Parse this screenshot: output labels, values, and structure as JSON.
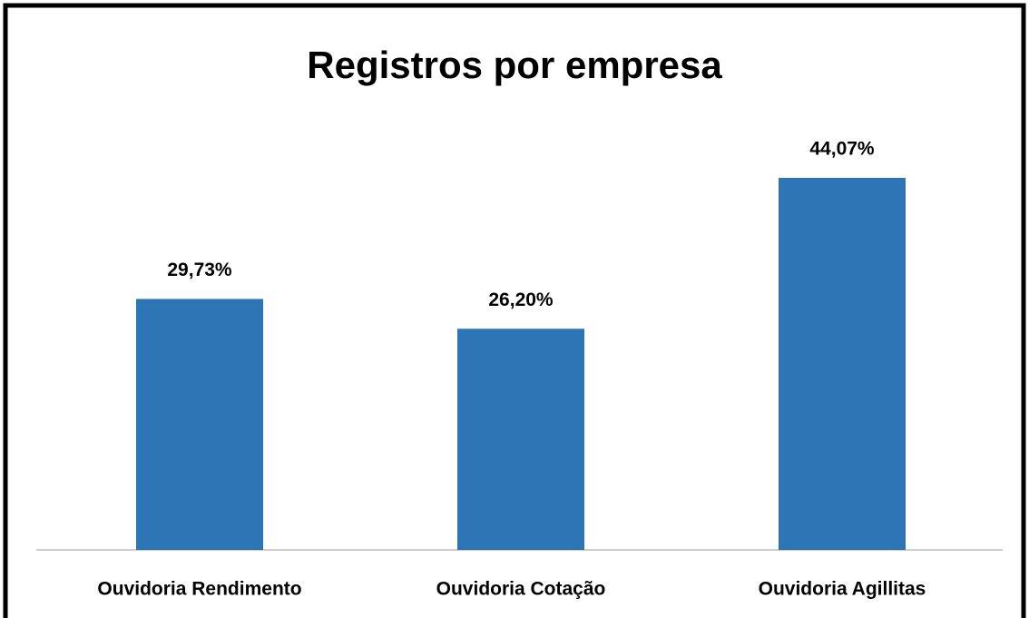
{
  "chart_data": {
    "type": "bar",
    "title": "Registros por empresa",
    "categories": [
      "Ouvidoria Rendimento",
      "Ouvidoria Cotação",
      "Ouvidoria Agillitas"
    ],
    "values": [
      29.73,
      26.2,
      44.07
    ],
    "value_labels": [
      "29,73%",
      "26,20%",
      "44,07%"
    ],
    "color": "#2e75b6"
  }
}
